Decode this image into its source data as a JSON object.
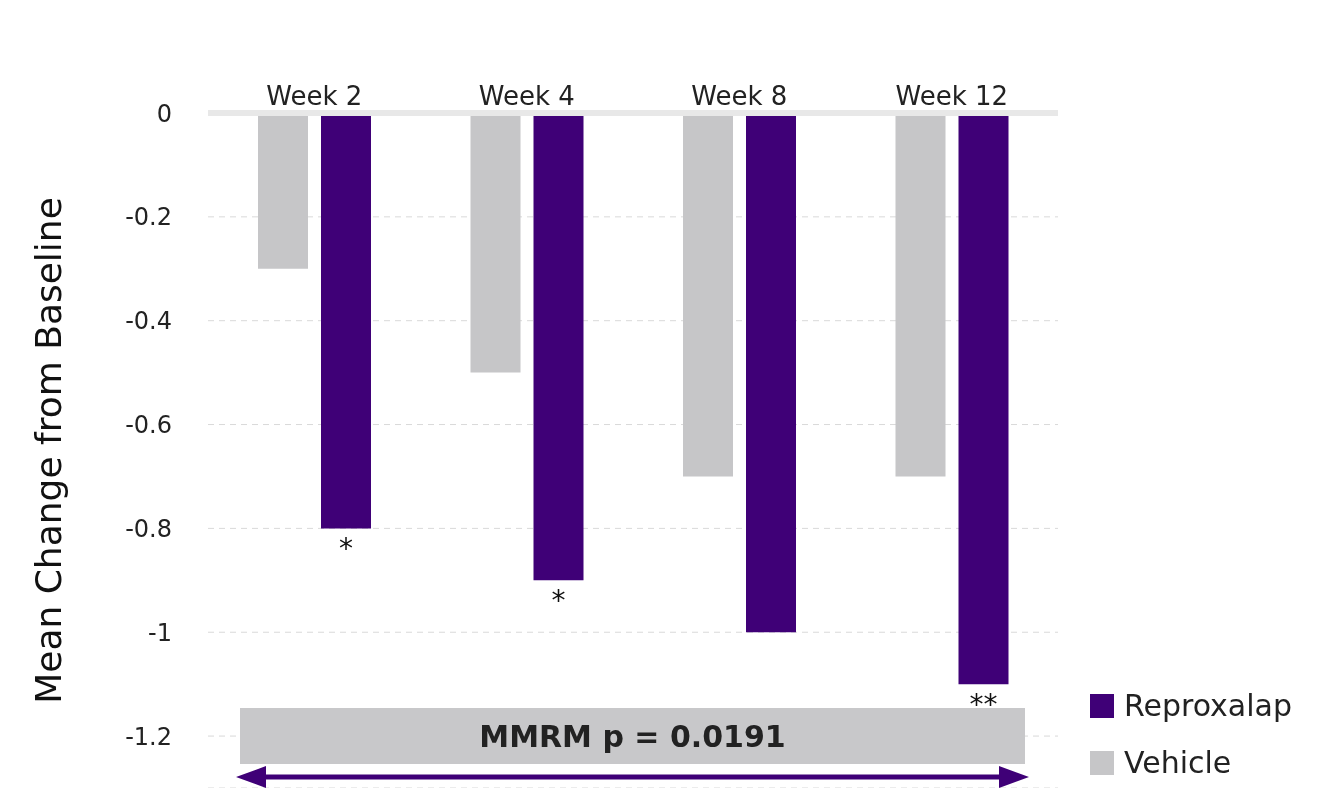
{
  "chart_data": {
    "type": "bar",
    "ylabel": "Mean Change from Baseline",
    "categories": [
      "Week 2",
      "Week 4",
      "Week 8",
      "Week 12"
    ],
    "series": [
      {
        "name": "Vehicle",
        "color": "#c6c6c8",
        "values": [
          -0.3,
          -0.5,
          -0.7,
          -0.7
        ]
      },
      {
        "name": "Reproxalap",
        "color": "#3f0077",
        "values": [
          -0.8,
          -0.9,
          -1.0,
          -1.1
        ],
        "value_labels": [
          "*",
          "*",
          null,
          "**"
        ]
      }
    ],
    "ylim": [
      -1.3,
      0
    ],
    "yticks": [
      0,
      -0.2,
      -0.4,
      -0.6,
      -0.8,
      -1,
      -1.2
    ],
    "grid": "y",
    "legend": "bottom right",
    "annotations": [
      "MMRM p = 0.0191"
    ]
  }
}
